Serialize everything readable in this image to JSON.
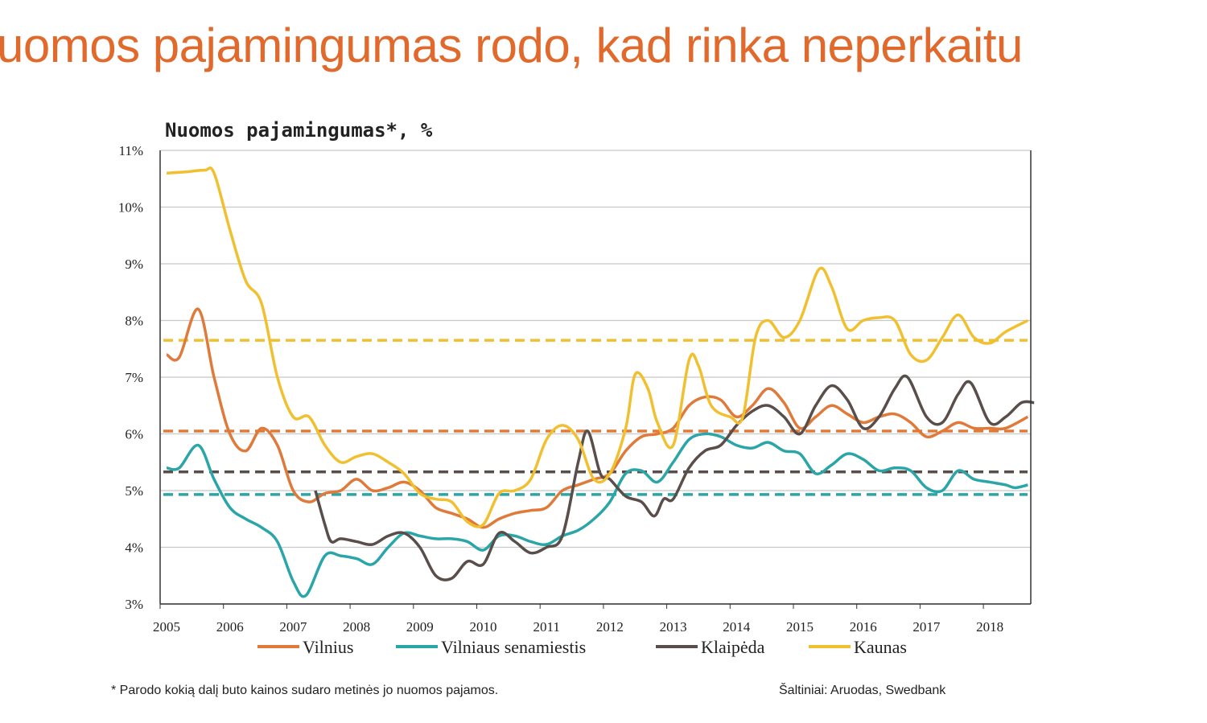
{
  "headline": "uomos pajamingumas rodo, kad rinka neperkaitu",
  "chart_data": {
    "type": "line",
    "title": "Nuomos pajamingumas*, %",
    "xlabel": "",
    "ylabel": "",
    "ylim": [
      3,
      11
    ],
    "xlim": [
      2005,
      2018.75
    ],
    "yticks": [
      "3%",
      "4%",
      "5%",
      "6%",
      "7%",
      "8%",
      "9%",
      "10%",
      "11%"
    ],
    "xticks": [
      "2005",
      "2006",
      "2007",
      "2008",
      "2009",
      "2010",
      "2011",
      "2012",
      "2013",
      "2014",
      "2015",
      "2016",
      "2017",
      "2018"
    ],
    "grid": true,
    "legend_position": "bottom",
    "series": [
      {
        "name": "Vilnius",
        "color": "#e07a3a",
        "average": 6.05,
        "points": [
          [
            2005.0,
            7.4
          ],
          [
            2005.2,
            7.35
          ],
          [
            2005.5,
            8.2
          ],
          [
            2005.75,
            7.0
          ],
          [
            2006.0,
            6.0
          ],
          [
            2006.25,
            5.7
          ],
          [
            2006.5,
            6.1
          ],
          [
            2006.75,
            5.8
          ],
          [
            2007.0,
            5.0
          ],
          [
            2007.25,
            4.8
          ],
          [
            2007.5,
            4.95
          ],
          [
            2007.75,
            5.0
          ],
          [
            2008.0,
            5.2
          ],
          [
            2008.25,
            5.0
          ],
          [
            2008.5,
            5.05
          ],
          [
            2008.75,
            5.15
          ],
          [
            2009.0,
            5.0
          ],
          [
            2009.25,
            4.7
          ],
          [
            2009.5,
            4.6
          ],
          [
            2009.75,
            4.5
          ],
          [
            2010.0,
            4.35
          ],
          [
            2010.25,
            4.5
          ],
          [
            2010.5,
            4.6
          ],
          [
            2010.75,
            4.65
          ],
          [
            2011.0,
            4.7
          ],
          [
            2011.25,
            5.0
          ],
          [
            2011.5,
            5.1
          ],
          [
            2011.75,
            5.2
          ],
          [
            2012.0,
            5.3
          ],
          [
            2012.25,
            5.7
          ],
          [
            2012.5,
            5.95
          ],
          [
            2012.75,
            6.0
          ],
          [
            2013.0,
            6.1
          ],
          [
            2013.25,
            6.5
          ],
          [
            2013.5,
            6.65
          ],
          [
            2013.75,
            6.6
          ],
          [
            2014.0,
            6.3
          ],
          [
            2014.25,
            6.5
          ],
          [
            2014.5,
            6.8
          ],
          [
            2014.75,
            6.55
          ],
          [
            2015.0,
            6.1
          ],
          [
            2015.25,
            6.3
          ],
          [
            2015.5,
            6.5
          ],
          [
            2015.75,
            6.35
          ],
          [
            2016.0,
            6.2
          ],
          [
            2016.25,
            6.3
          ],
          [
            2016.5,
            6.35
          ],
          [
            2016.75,
            6.2
          ],
          [
            2017.0,
            5.95
          ],
          [
            2017.25,
            6.05
          ],
          [
            2017.5,
            6.2
          ],
          [
            2017.75,
            6.1
          ],
          [
            2018.0,
            6.1
          ],
          [
            2018.25,
            6.1
          ],
          [
            2018.6,
            6.3
          ]
        ]
      },
      {
        "name": "Vilniaus senamiestis",
        "color": "#2aa5a8",
        "average": 4.93,
        "points": [
          [
            2005.0,
            5.4
          ],
          [
            2005.2,
            5.4
          ],
          [
            2005.5,
            5.8
          ],
          [
            2005.75,
            5.2
          ],
          [
            2006.0,
            4.7
          ],
          [
            2006.25,
            4.5
          ],
          [
            2006.5,
            4.35
          ],
          [
            2006.75,
            4.1
          ],
          [
            2007.0,
            3.4
          ],
          [
            2007.2,
            3.15
          ],
          [
            2007.5,
            3.85
          ],
          [
            2007.75,
            3.85
          ],
          [
            2008.0,
            3.8
          ],
          [
            2008.25,
            3.7
          ],
          [
            2008.5,
            4.0
          ],
          [
            2008.75,
            4.25
          ],
          [
            2009.0,
            4.2
          ],
          [
            2009.25,
            4.15
          ],
          [
            2009.5,
            4.15
          ],
          [
            2009.75,
            4.1
          ],
          [
            2010.0,
            3.95
          ],
          [
            2010.25,
            4.2
          ],
          [
            2010.5,
            4.2
          ],
          [
            2010.75,
            4.1
          ],
          [
            2011.0,
            4.05
          ],
          [
            2011.25,
            4.2
          ],
          [
            2011.5,
            4.3
          ],
          [
            2011.75,
            4.5
          ],
          [
            2012.0,
            4.8
          ],
          [
            2012.25,
            5.3
          ],
          [
            2012.5,
            5.35
          ],
          [
            2012.75,
            5.15
          ],
          [
            2013.0,
            5.5
          ],
          [
            2013.25,
            5.9
          ],
          [
            2013.5,
            6.0
          ],
          [
            2013.75,
            5.95
          ],
          [
            2014.0,
            5.8
          ],
          [
            2014.25,
            5.75
          ],
          [
            2014.5,
            5.85
          ],
          [
            2014.75,
            5.7
          ],
          [
            2015.0,
            5.65
          ],
          [
            2015.25,
            5.3
          ],
          [
            2015.5,
            5.45
          ],
          [
            2015.75,
            5.65
          ],
          [
            2016.0,
            5.55
          ],
          [
            2016.25,
            5.35
          ],
          [
            2016.5,
            5.4
          ],
          [
            2016.75,
            5.35
          ],
          [
            2017.0,
            5.05
          ],
          [
            2017.25,
            5.0
          ],
          [
            2017.5,
            5.35
          ],
          [
            2017.75,
            5.2
          ],
          [
            2018.0,
            5.15
          ],
          [
            2018.25,
            5.1
          ],
          [
            2018.4,
            5.05
          ],
          [
            2018.6,
            5.1
          ]
        ]
      },
      {
        "name": "Klaipėda",
        "color": "#5a4e4a",
        "average": 5.33,
        "points": [
          [
            2007.35,
            5.0
          ],
          [
            2007.5,
            4.4
          ],
          [
            2007.6,
            4.1
          ],
          [
            2007.75,
            4.15
          ],
          [
            2008.0,
            4.1
          ],
          [
            2008.25,
            4.05
          ],
          [
            2008.5,
            4.2
          ],
          [
            2008.75,
            4.25
          ],
          [
            2009.0,
            4.0
          ],
          [
            2009.25,
            3.5
          ],
          [
            2009.5,
            3.45
          ],
          [
            2009.75,
            3.75
          ],
          [
            2010.0,
            3.7
          ],
          [
            2010.25,
            4.25
          ],
          [
            2010.5,
            4.1
          ],
          [
            2010.75,
            3.9
          ],
          [
            2011.0,
            4.0
          ],
          [
            2011.25,
            4.2
          ],
          [
            2011.5,
            5.5
          ],
          [
            2011.65,
            6.05
          ],
          [
            2011.85,
            5.3
          ],
          [
            2012.0,
            5.2
          ],
          [
            2012.25,
            4.9
          ],
          [
            2012.5,
            4.8
          ],
          [
            2012.7,
            4.55
          ],
          [
            2012.85,
            4.85
          ],
          [
            2013.0,
            4.85
          ],
          [
            2013.25,
            5.4
          ],
          [
            2013.5,
            5.7
          ],
          [
            2013.75,
            5.8
          ],
          [
            2014.0,
            6.15
          ],
          [
            2014.25,
            6.4
          ],
          [
            2014.5,
            6.5
          ],
          [
            2014.75,
            6.3
          ],
          [
            2015.0,
            6.0
          ],
          [
            2015.25,
            6.5
          ],
          [
            2015.5,
            6.85
          ],
          [
            2015.75,
            6.6
          ],
          [
            2016.0,
            6.1
          ],
          [
            2016.25,
            6.3
          ],
          [
            2016.5,
            6.8
          ],
          [
            2016.7,
            7.0
          ],
          [
            2017.0,
            6.3
          ],
          [
            2017.25,
            6.2
          ],
          [
            2017.5,
            6.7
          ],
          [
            2017.7,
            6.9
          ],
          [
            2018.0,
            6.2
          ],
          [
            2018.25,
            6.3
          ],
          [
            2018.5,
            6.55
          ],
          [
            2018.7,
            6.55
          ]
        ]
      },
      {
        "name": "Kaunas",
        "color": "#f0c030",
        "average": 7.65,
        "points": [
          [
            2005.0,
            10.6
          ],
          [
            2005.3,
            10.62
          ],
          [
            2005.6,
            10.65
          ],
          [
            2005.75,
            10.6
          ],
          [
            2006.0,
            9.6
          ],
          [
            2006.25,
            8.7
          ],
          [
            2006.5,
            8.3
          ],
          [
            2006.75,
            7.0
          ],
          [
            2007.0,
            6.3
          ],
          [
            2007.25,
            6.3
          ],
          [
            2007.5,
            5.8
          ],
          [
            2007.75,
            5.5
          ],
          [
            2008.0,
            5.6
          ],
          [
            2008.25,
            5.65
          ],
          [
            2008.5,
            5.5
          ],
          [
            2008.75,
            5.3
          ],
          [
            2009.0,
            4.95
          ],
          [
            2009.25,
            4.85
          ],
          [
            2009.5,
            4.8
          ],
          [
            2009.75,
            4.45
          ],
          [
            2010.0,
            4.4
          ],
          [
            2010.25,
            4.95
          ],
          [
            2010.5,
            5.0
          ],
          [
            2010.75,
            5.2
          ],
          [
            2011.0,
            5.9
          ],
          [
            2011.25,
            6.15
          ],
          [
            2011.5,
            5.9
          ],
          [
            2011.75,
            5.2
          ],
          [
            2012.0,
            5.3
          ],
          [
            2012.25,
            6.1
          ],
          [
            2012.4,
            7.05
          ],
          [
            2012.6,
            6.8
          ],
          [
            2012.75,
            6.2
          ],
          [
            2013.0,
            5.8
          ],
          [
            2013.25,
            7.3
          ],
          [
            2013.4,
            7.2
          ],
          [
            2013.6,
            6.5
          ],
          [
            2013.9,
            6.3
          ],
          [
            2014.1,
            6.3
          ],
          [
            2014.3,
            7.7
          ],
          [
            2014.5,
            8.0
          ],
          [
            2014.75,
            7.7
          ],
          [
            2015.0,
            8.0
          ],
          [
            2015.3,
            8.9
          ],
          [
            2015.5,
            8.6
          ],
          [
            2015.75,
            7.85
          ],
          [
            2016.0,
            8.0
          ],
          [
            2016.25,
            8.05
          ],
          [
            2016.5,
            8.0
          ],
          [
            2016.75,
            7.4
          ],
          [
            2017.0,
            7.3
          ],
          [
            2017.25,
            7.7
          ],
          [
            2017.5,
            8.1
          ],
          [
            2017.75,
            7.7
          ],
          [
            2018.0,
            7.6
          ],
          [
            2018.25,
            7.8
          ],
          [
            2018.6,
            8.0
          ]
        ]
      }
    ],
    "footnote": "* Parodo kokią dalį buto kainos sudaro metinės jo nuomos pajamos.",
    "source": "Šaltiniai: Aruodas, Swedbank"
  }
}
